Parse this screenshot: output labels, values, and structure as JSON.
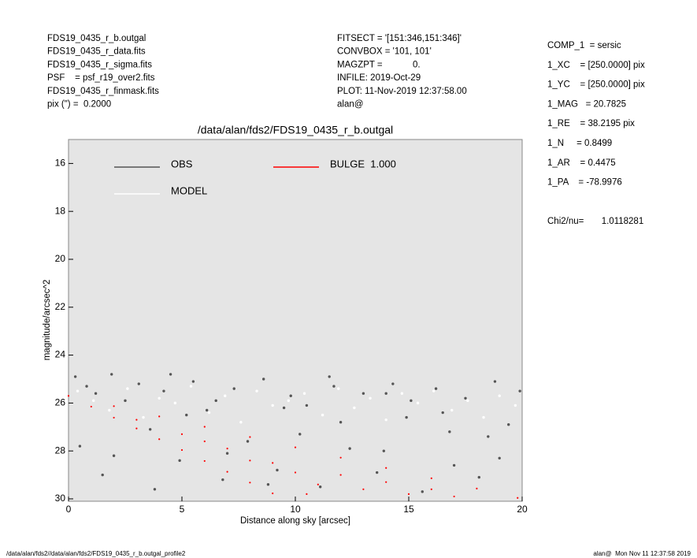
{
  "header": {
    "left": [
      "FDS19_0435_r_b.outgal",
      "FDS19_0435_r_data.fits",
      "FDS19_0435_r_sigma.fits",
      "PSF    = psf_r19_over2.fits",
      "FDS19_0435_r_finmask.fits",
      "pix (\") =  0.2000"
    ],
    "middle": [
      "FITSECT = '[151:346,151:346]'",
      "CONVBOX = '101, 101'",
      "MAGZPT =            0.",
      "INFILE: 2019-Oct-29",
      "PLOT: 11-Nov-2019 12:37:58.00",
      "alan@"
    ],
    "right": [
      "COMP_1  = sersic",
      "1_XC    = [250.0000] pix",
      "1_YC    = [250.0000] pix",
      "1_MAG   = 20.7825",
      "1_RE    = 38.2195 pix",
      "1_N     = 0.8499",
      "1_AR    = 0.4475",
      "1_PA    = -78.9976"
    ],
    "chi2": "Chi2/nu=       1.0118281"
  },
  "footer": {
    "left": "/data/alan/fds2//data/alan/fds2/FDS19_0435_r_b.outgal_profile2",
    "right": "alan@  Mon Nov 11 12:37:58 2019"
  },
  "chart_data": {
    "type": "scatter",
    "title": "/data/alan/fds2/FDS19_0435_r_b.outgal",
    "x_label": "Distance along sky [arcsec]",
    "y_label": "magnitude/arcsec^2",
    "xlim": [
      0,
      20
    ],
    "ylim": [
      30.1,
      15.0
    ],
    "xticks": [
      0,
      5,
      10,
      15,
      20
    ],
    "yticks": [
      16,
      18,
      20,
      22,
      24,
      26,
      28,
      30
    ],
    "background": "#e5e5e5",
    "series": [
      {
        "name": "OBS",
        "color": "#555555",
        "x": [
          0.3,
          0.8,
          1.2,
          1.9,
          2.5,
          3.1,
          3.6,
          4.2,
          4.9,
          5.5,
          6.1,
          6.8,
          7.3,
          7.9,
          8.6,
          9.2,
          9.8,
          10.5,
          11.1,
          11.7,
          12.4,
          13.0,
          13.6,
          14.3,
          14.9,
          15.6,
          16.2,
          16.8,
          17.5,
          18.1,
          18.8,
          19.4,
          19.9,
          0.5,
          2.0,
          3.8,
          5.2,
          7.0,
          8.8,
          10.2,
          12.0,
          13.9,
          15.1,
          17.0,
          18.5,
          1.5,
          4.5,
          6.5,
          9.5,
          11.5,
          14.0,
          16.5,
          19.0
        ],
        "values": [
          24.9,
          25.3,
          25.6,
          24.8,
          25.9,
          25.2,
          27.1,
          25.5,
          28.4,
          25.1,
          26.3,
          29.2,
          25.4,
          27.6,
          25.0,
          28.8,
          25.7,
          26.1,
          29.5,
          25.3,
          27.9,
          25.6,
          28.9,
          25.2,
          26.6,
          29.7,
          25.4,
          27.2,
          25.8,
          29.1,
          25.1,
          26.9,
          25.5,
          27.8,
          28.2,
          29.6,
          26.5,
          28.1,
          29.4,
          27.3,
          26.8,
          28.0,
          25.9,
          28.6,
          27.4,
          29.0,
          24.8,
          25.9,
          26.2,
          24.9,
          25.6,
          26.4,
          28.3
        ]
      },
      {
        "name": "MODEL",
        "color": "#ffffff",
        "x": [
          0.4,
          1.1,
          1.8,
          2.6,
          3.3,
          4.0,
          4.7,
          5.4,
          6.2,
          6.9,
          7.6,
          8.3,
          9.0,
          9.7,
          10.4,
          11.2,
          11.9,
          12.6,
          13.3,
          14.0,
          14.7,
          15.4,
          16.1,
          16.9,
          17.6,
          18.3,
          19.0,
          19.7
        ],
        "values": [
          25.5,
          25.9,
          26.3,
          25.4,
          26.6,
          25.8,
          26.0,
          25.3,
          26.4,
          25.7,
          26.8,
          25.5,
          26.1,
          25.9,
          25.6,
          26.5,
          25.4,
          26.2,
          25.8,
          26.7,
          25.6,
          26.0,
          25.5,
          26.3,
          25.9,
          26.6,
          25.7,
          26.1
        ]
      },
      {
        "name": "BULGE  1.000",
        "color": "#ff0000",
        "x": [
          0,
          1,
          2,
          3,
          4,
          5,
          6,
          7,
          8,
          9,
          2,
          4,
          6,
          8,
          10,
          12,
          14,
          16,
          18,
          19.8,
          5,
          7,
          8,
          10,
          11,
          12,
          13,
          14,
          15,
          16,
          17,
          9,
          6,
          3,
          10.5
        ],
        "values": [
          25.7,
          26.15,
          26.61,
          27.06,
          27.51,
          27.96,
          28.42,
          28.87,
          29.32,
          29.77,
          26.13,
          26.56,
          26.99,
          27.42,
          27.85,
          28.28,
          28.71,
          29.14,
          29.57,
          29.96,
          27.3,
          27.9,
          28.4,
          28.9,
          29.4,
          29.0,
          29.6,
          29.3,
          29.8,
          29.6,
          29.9,
          28.5,
          27.6,
          26.7,
          29.8
        ]
      }
    ]
  }
}
